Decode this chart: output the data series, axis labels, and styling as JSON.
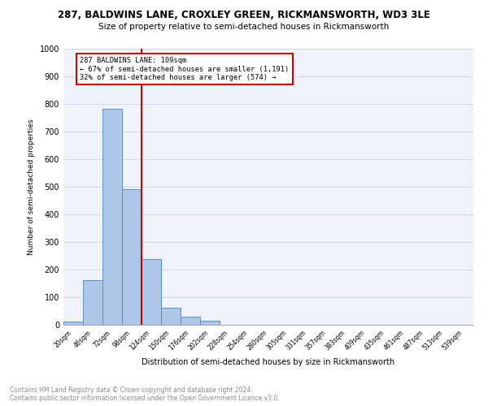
{
  "title_line1": "287, BALDWINS LANE, CROXLEY GREEN, RICKMANSWORTH, WD3 3LE",
  "title_line2": "Size of property relative to semi-detached houses in Rickmansworth",
  "xlabel": "Distribution of semi-detached houses by size in Rickmansworth",
  "ylabel": "Number of semi-detached properties",
  "footer_line1": "Contains HM Land Registry data © Crown copyright and database right 2024.",
  "footer_line2": "Contains public sector information licensed under the Open Government Licence v3.0.",
  "bin_labels": [
    "20sqm",
    "46sqm",
    "72sqm",
    "98sqm",
    "124sqm",
    "150sqm",
    "176sqm",
    "202sqm",
    "228sqm",
    "254sqm",
    "280sqm",
    "305sqm",
    "331sqm",
    "357sqm",
    "383sqm",
    "409sqm",
    "435sqm",
    "461sqm",
    "487sqm",
    "513sqm",
    "539sqm"
  ],
  "bar_values": [
    13,
    163,
    783,
    490,
    237,
    63,
    28,
    15,
    0,
    0,
    0,
    0,
    0,
    0,
    0,
    0,
    0,
    0,
    0,
    0,
    0
  ],
  "bar_color": "#aec6e8",
  "bar_edge_color": "#5a8fc2",
  "vline_x": 3.5,
  "vline_color": "#cc0000",
  "annotation_text_line1": "287 BALDWINS LANE: 109sqm",
  "annotation_text_line2": "← 67% of semi-detached houses are smaller (1,191)",
  "annotation_text_line3": "32% of semi-detached houses are larger (574) →",
  "annotation_box_color": "#ffffff",
  "annotation_edge_color": "#cc0000",
  "grid_color": "#d0d8e8",
  "background_color": "#f0f4fa",
  "ylim": [
    0,
    1000
  ],
  "yticks": [
    0,
    100,
    200,
    300,
    400,
    500,
    600,
    700,
    800,
    900,
    1000
  ]
}
